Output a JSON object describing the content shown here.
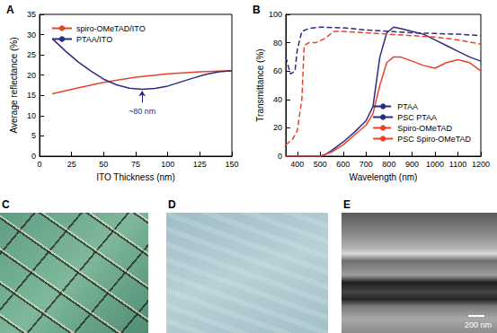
{
  "chart_data": [
    {
      "type": "line",
      "title": "A",
      "x_label": "ITO Thickness (nm)",
      "y_label": "Average reflectance (%)",
      "xlim": [
        0,
        150
      ],
      "xticks": [
        0,
        25,
        50,
        75,
        100,
        125,
        150
      ],
      "ylim": [
        0,
        35
      ],
      "yticks": [
        0,
        5,
        10,
        15,
        20,
        25,
        30,
        35
      ],
      "grid": false,
      "legend": "upper left",
      "annotations": [
        {
          "text": "~80 nm",
          "x": 80,
          "y": 16.5
        }
      ],
      "series": [
        {
          "name": "spiro-OMeTAD/ITO",
          "color": "#e8432a",
          "line_style": "solid",
          "x": [
            10,
            25,
            50,
            75,
            100,
            125,
            150
          ],
          "values": [
            15.4,
            16.5,
            18.2,
            19.5,
            20.3,
            20.8,
            21.1
          ]
        },
        {
          "name": "PTAA/ITO",
          "color": "#2e2a80",
          "line_style": "solid",
          "x": [
            10,
            20,
            30,
            40,
            50,
            60,
            70,
            80,
            90,
            100,
            110,
            120,
            130,
            140,
            150
          ],
          "values": [
            29,
            26,
            23.3,
            21,
            19,
            17.6,
            16.8,
            16.5,
            16.7,
            17.3,
            18.3,
            19.3,
            20.2,
            20.8,
            21.1
          ]
        }
      ]
    },
    {
      "type": "line",
      "title": "B",
      "x_label": "Wavelength (nm)",
      "y_label": "Transmittance (%)",
      "xlim": [
        350,
        1200
      ],
      "xticks": [
        400,
        500,
        600,
        700,
        800,
        900,
        1000,
        1100,
        1200
      ],
      "ylim": [
        0,
        100
      ],
      "yticks": [
        0,
        20,
        40,
        60,
        80,
        100
      ],
      "grid": false,
      "legend": "lower right",
      "series": [
        {
          "name": "PTAA",
          "color": "#2e2a80",
          "line_style": "dashed",
          "x": [
            350,
            370,
            390,
            400,
            420,
            450,
            500,
            600,
            700,
            800,
            900,
            1000,
            1100,
            1200
          ],
          "values": [
            70,
            58,
            60,
            75,
            88,
            90,
            91,
            90.5,
            89,
            88,
            87,
            86.5,
            86,
            85
          ]
        },
        {
          "name": "PSC PTAA",
          "color": "#2e2a80",
          "line_style": "solid",
          "x": [
            350,
            400,
            500,
            520,
            550,
            600,
            650,
            700,
            730,
            760,
            790,
            820,
            850,
            900,
            950,
            1000,
            1050,
            1100,
            1150,
            1200
          ],
          "values": [
            0,
            0,
            0,
            1,
            4,
            10,
            17,
            25,
            35,
            70,
            87,
            91,
            90,
            88,
            86,
            82,
            78,
            74,
            70,
            67
          ]
        },
        {
          "name": "Spiro-OMeTAD",
          "color": "#e8432a",
          "line_style": "dashed",
          "x": [
            350,
            380,
            400,
            420,
            430,
            450,
            480,
            520,
            560,
            600,
            700,
            800,
            900,
            1000,
            1100,
            1200
          ],
          "values": [
            8,
            12,
            18,
            40,
            78,
            80,
            80,
            83,
            88,
            88,
            87,
            86,
            85,
            84,
            82,
            79
          ]
        },
        {
          "name": "PSC Spiro-OMeTAD",
          "color": "#e8432a",
          "line_style": "solid",
          "x": [
            350,
            400,
            500,
            550,
            600,
            650,
            700,
            730,
            760,
            790,
            820,
            850,
            900,
            950,
            1000,
            1050,
            1100,
            1150,
            1200
          ],
          "values": [
            0,
            0,
            0,
            3,
            8,
            15,
            22,
            30,
            50,
            66,
            70,
            70,
            67,
            64,
            62,
            66,
            68,
            66,
            60
          ]
        }
      ]
    }
  ],
  "images": [
    {
      "label": "C"
    },
    {
      "label": "D"
    },
    {
      "label": "E",
      "scale_bar": "200 nm"
    }
  ]
}
